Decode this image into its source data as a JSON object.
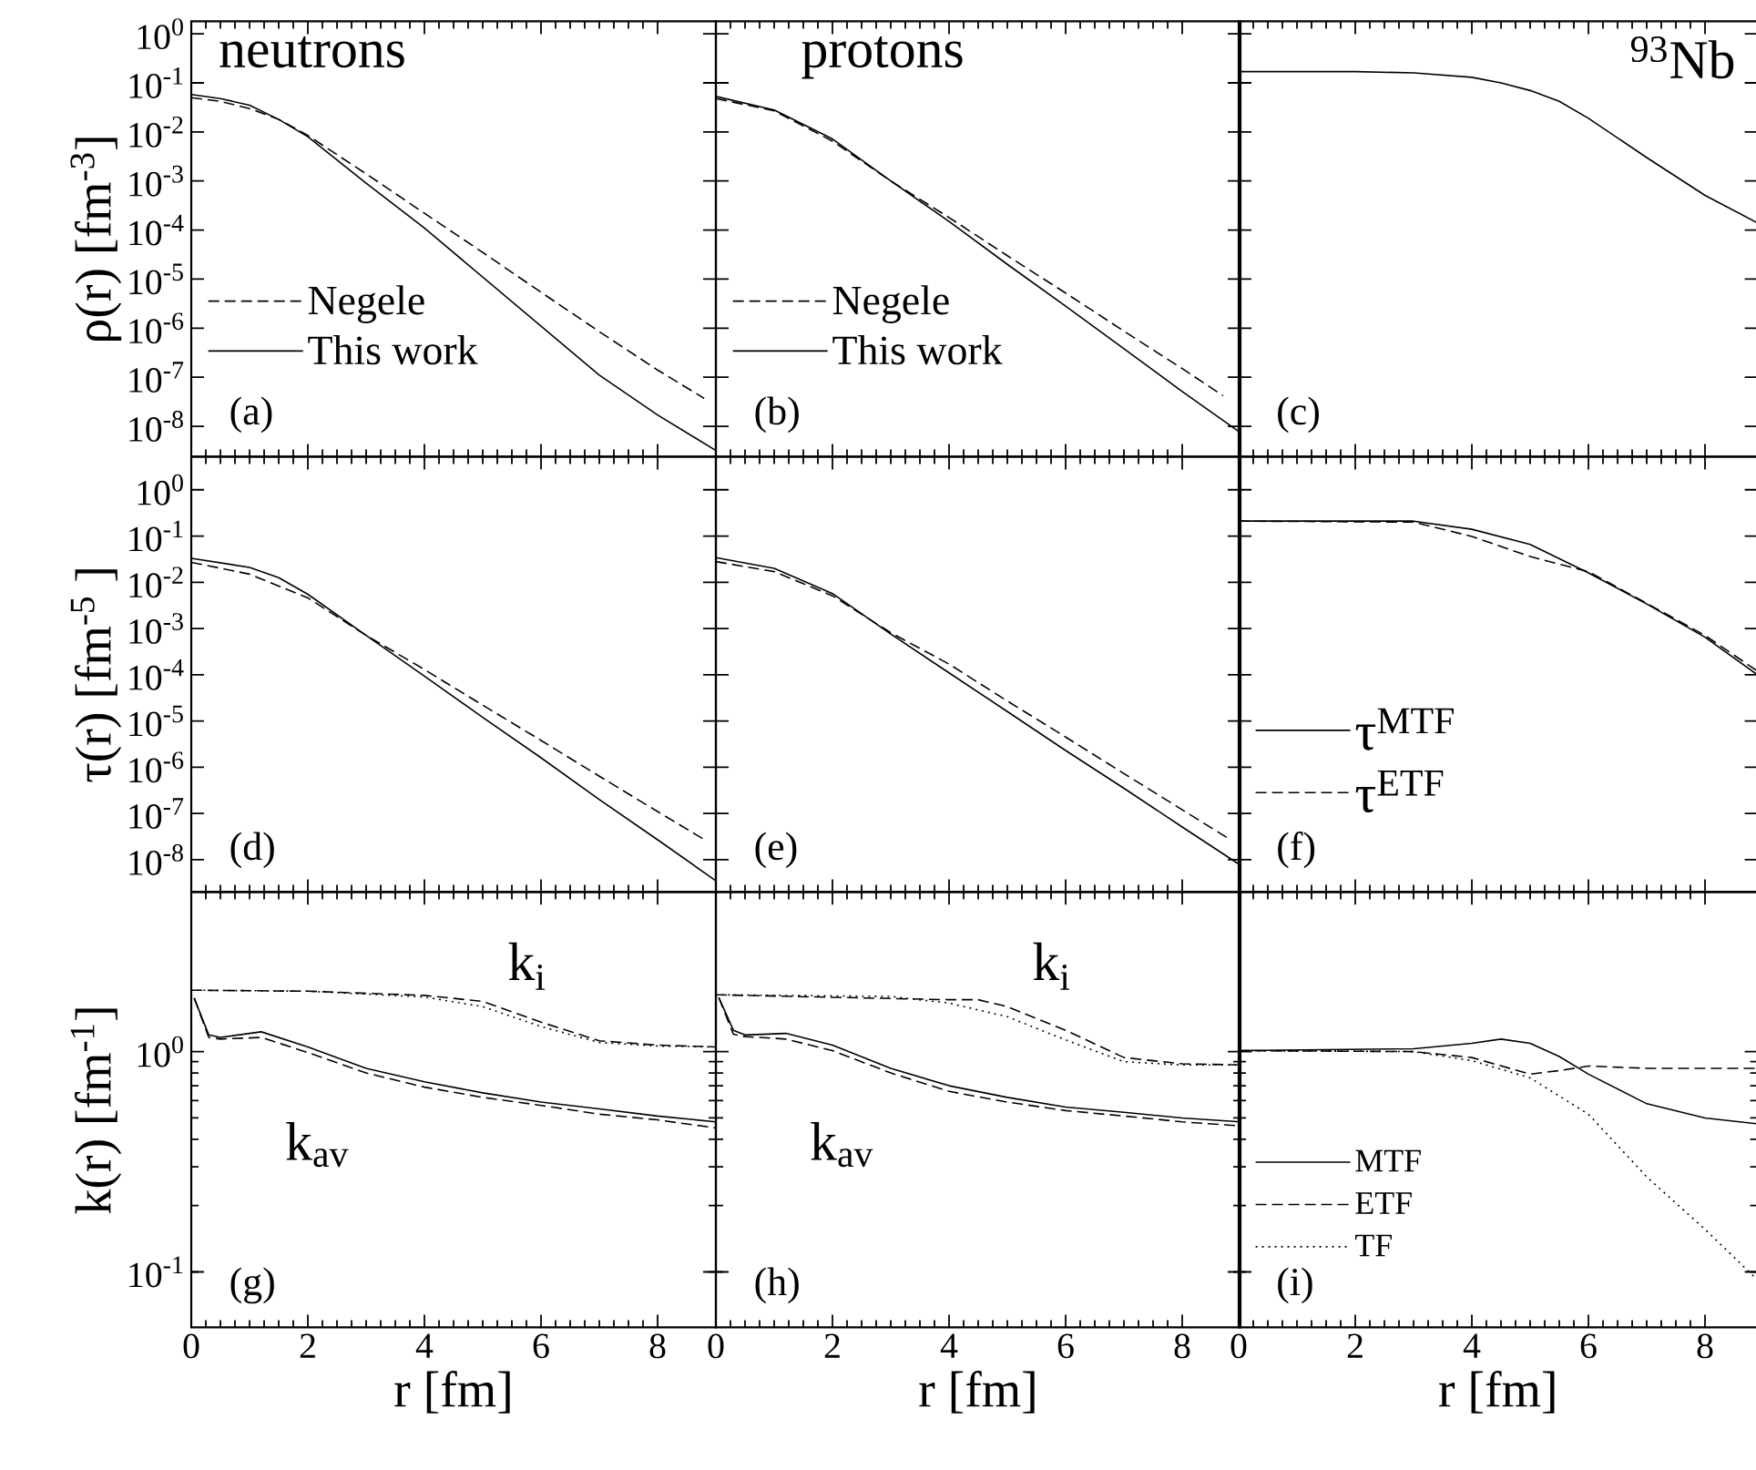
{
  "chart_data": [
    {
      "type": "line",
      "ylabel": "ρ(r)  [fm$^{-3}$]",
      "xlim": [
        0,
        9
      ],
      "ylim": [
        2.4e-09,
        1.8
      ],
      "log": "y",
      "tick_labels": "y",
      "legend": "left",
      "xticks": [
        0,
        2,
        4,
        6,
        8
      ],
      "yticks": [
        {
          "value": 1,
          "label": "10$^{0}$"
        },
        {
          "value": 0.1,
          "label": "10$^{-1}$"
        },
        {
          "value": 0.01,
          "label": "10$^{-2}$"
        },
        {
          "value": 0.001,
          "label": "10$^{-3}$"
        },
        {
          "value": 0.0001,
          "label": "10$^{-4}$"
        },
        {
          "value": 1e-05,
          "label": "10$^{-5}$"
        },
        {
          "value": 1e-06,
          "label": "10$^{-6}$"
        },
        {
          "value": 1e-07,
          "label": "10$^{-7}$"
        },
        {
          "value": 1e-08,
          "label": "10$^{-8}$"
        }
      ],
      "series": [
        {
          "name": "Negele",
          "color": "#000000",
          "line_style": "dashed",
          "x": [
            0,
            0.5,
            1,
            1.5,
            2,
            3,
            4,
            5,
            6,
            7,
            8,
            8.8
          ],
          "values": [
            0.05,
            0.042,
            0.03,
            0.018,
            0.0085,
            0.0014,
            0.00022,
            3.5e-05,
            5.4e-06,
            8.5e-07,
            1.4e-07,
            3.7e-08
          ]
        },
        {
          "name": "This work",
          "color": "#000000",
          "line_style": "solid",
          "x": [
            0,
            0.5,
            1,
            1.5,
            2,
            3,
            4,
            5,
            6,
            7,
            8,
            9
          ],
          "values": [
            0.058,
            0.048,
            0.035,
            0.018,
            0.008,
            0.0009,
            0.00011,
            1.1e-05,
            1.1e-06,
            1.1e-07,
            1.7e-08,
            3.2e-09
          ]
        }
      ],
      "annotations": [
        "neutrons",
        "(a)"
      ]
    },
    {
      "type": "line",
      "xlim": [
        0,
        9
      ],
      "ylim": [
        2.4e-09,
        1.8
      ],
      "log": "y",
      "tick_labels": false,
      "legend": "left",
      "xticks": [
        0,
        2,
        4,
        6,
        8
      ],
      "yticks": [
        1,
        0.1,
        0.01,
        0.001,
        0.0001,
        1e-05,
        1e-06,
        1e-07,
        1e-08
      ],
      "series": [
        {
          "name": "Negele",
          "color": "#000000",
          "line_style": "dashed",
          "x": [
            0,
            1,
            2,
            3,
            4,
            5,
            6,
            7,
            8,
            8.7
          ],
          "values": [
            0.048,
            0.027,
            0.0065,
            0.001,
            0.00018,
            3e-05,
            5.2e-06,
            8.7e-07,
            1.5e-07,
            4.2e-08
          ]
        },
        {
          "name": "This work",
          "color": "#000000",
          "line_style": "solid",
          "x": [
            0,
            1,
            2,
            3,
            4,
            5,
            6,
            7,
            8,
            9
          ],
          "values": [
            0.053,
            0.028,
            0.0072,
            0.001,
            0.00015,
            2e-05,
            2.8e-06,
            3.8e-07,
            5.1e-08,
            7.4e-09
          ]
        }
      ],
      "annotations": [
        "protons",
        "(b)"
      ]
    },
    {
      "type": "line",
      "xlim": [
        0,
        8.9
      ],
      "ylim": [
        2.4e-09,
        1.8
      ],
      "log": "y",
      "tick_labels": false,
      "xticks": [
        0,
        2,
        4,
        6,
        8
      ],
      "yticks": [
        1,
        0.1,
        0.01,
        0.001,
        0.0001,
        1e-05,
        1e-06,
        1e-07,
        1e-08
      ],
      "series": [
        {
          "color": "#000000",
          "line_style": "solid",
          "x": [
            0,
            1,
            2,
            3,
            4,
            4.5,
            5,
            5.5,
            6,
            7,
            8,
            8.9
          ],
          "values": [
            0.17,
            0.17,
            0.17,
            0.16,
            0.13,
            0.1,
            0.07,
            0.042,
            0.019,
            0.003,
            0.00051,
            0.00014
          ]
        }
      ],
      "annotations": [
        "$^{93}$Nb",
        "(c)"
      ]
    },
    {
      "type": "line",
      "ylabel": "τ(r)  [fm$^{-5}$ ]",
      "xlim": [
        0,
        9
      ],
      "ylim": [
        2e-09,
        5.2
      ],
      "log": "y",
      "tick_labels": "y",
      "xticks": [
        0,
        2,
        4,
        6,
        8
      ],
      "yticks": [
        {
          "value": 1,
          "label": "10$^{0}$"
        },
        {
          "value": 0.1,
          "label": "10$^{-1}$"
        },
        {
          "value": 0.01,
          "label": "10$^{-2}$"
        },
        {
          "value": 0.001,
          "label": "10$^{-3}$"
        },
        {
          "value": 0.0001,
          "label": "10$^{-4}$"
        },
        {
          "value": 1e-05,
          "label": "10$^{-5}$"
        },
        {
          "value": 1e-06,
          "label": "10$^{-6}$"
        },
        {
          "value": 1e-07,
          "label": "10$^{-7}$"
        },
        {
          "value": 1e-08,
          "label": "10$^{-8}$"
        }
      ],
      "series": [
        {
          "color": "#000000",
          "line_style": "solid",
          "x": [
            0,
            1,
            1.5,
            2,
            3,
            4,
            5,
            6,
            7,
            8,
            9
          ],
          "values": [
            0.033,
            0.021,
            0.0126,
            0.0055,
            0.00071,
            9.3e-05,
            1.2e-05,
            1.6e-06,
            2e-07,
            2.7e-08,
            3.5e-09
          ]
        },
        {
          "color": "#000000",
          "line_style": "dashed",
          "x": [
            0,
            1,
            2,
            3,
            4,
            5,
            6,
            7,
            8,
            8.85
          ],
          "values": [
            0.027,
            0.015,
            0.0046,
            0.00071,
            0.00013,
            2.2e-05,
            3.8e-06,
            6.4e-07,
            1.1e-07,
            2.5e-08
          ]
        }
      ],
      "annotations": [
        "(d)"
      ]
    },
    {
      "type": "line",
      "xlim": [
        0,
        9
      ],
      "ylim": [
        2e-09,
        5.2
      ],
      "log": "y",
      "tick_labels": false,
      "xticks": [
        0,
        2,
        4,
        6,
        8
      ],
      "yticks": [
        1,
        0.1,
        0.01,
        0.001,
        0.0001,
        1e-05,
        1e-06,
        1e-07,
        1e-08
      ],
      "series": [
        {
          "color": "#000000",
          "line_style": "solid",
          "x": [
            0,
            1,
            2,
            3,
            4,
            5,
            6,
            7,
            8,
            9
          ],
          "values": [
            0.034,
            0.02,
            0.0057,
            0.00076,
            0.00011,
            1.6e-05,
            2.3e-06,
            3.5e-07,
            5.1e-08,
            7.6e-09
          ]
        },
        {
          "color": "#000000",
          "line_style": "dashed",
          "x": [
            0,
            1,
            2,
            3,
            4,
            5,
            6,
            7,
            8,
            8.83
          ],
          "values": [
            0.028,
            0.017,
            0.0051,
            0.00081,
            0.00017,
            2.7e-05,
            4.5e-06,
            7.3e-07,
            1.2e-07,
            2.7e-08
          ]
        }
      ],
      "annotations": [
        "(e)"
      ]
    },
    {
      "type": "line",
      "xlim": [
        0,
        8.9
      ],
      "ylim": [
        2e-09,
        5.2
      ],
      "log": "y",
      "tick_labels": false,
      "legend": "left",
      "xticks": [
        0,
        2,
        4,
        6,
        8
      ],
      "yticks": [
        1,
        0.1,
        0.01,
        0.001,
        0.0001,
        1e-05,
        1e-06,
        1e-07,
        1e-08
      ],
      "series": [
        {
          "name": "τ$^{MTF}$",
          "color": "#000000",
          "line_style": "solid",
          "x": [
            0,
            3,
            4,
            5,
            6,
            7,
            8,
            8.9
          ],
          "values": [
            0.21,
            0.21,
            0.14,
            0.066,
            0.016,
            0.0034,
            0.00065,
            0.0001
          ]
        },
        {
          "name": "τ$^{ETF}$",
          "color": "#000000",
          "line_style": "dashed",
          "x": [
            0,
            3,
            4,
            5,
            6,
            7,
            8,
            8.9
          ],
          "values": [
            0.21,
            0.2,
            0.098,
            0.036,
            0.017,
            0.0035,
            0.00071,
            0.00012
          ]
        }
      ],
      "annotations": [
        "(f)"
      ]
    },
    {
      "type": "line",
      "ylabel": "k(r)  [fm$^{-1}$]",
      "xlabel": "r [fm]",
      "xlim": [
        0,
        9
      ],
      "ylim": [
        0.056,
        5.3
      ],
      "log": "y",
      "xticks": [
        0,
        2,
        4,
        6,
        8
      ],
      "yticks": [
        {
          "value": 0.1,
          "label": "10$^{-1}$"
        },
        {
          "value": 1,
          "label": "10$^{0}$"
        }
      ],
      "series": [
        {
          "color": "#000000",
          "line_style": "dashed",
          "x": [
            0,
            2,
            4,
            5,
            6,
            7,
            8,
            9
          ],
          "values": [
            1.9,
            1.88,
            1.8,
            1.69,
            1.36,
            1.12,
            1.07,
            1.05
          ]
        },
        {
          "color": "#000000",
          "line_style": "dotted",
          "x": [
            0.1,
            2,
            4,
            5,
            6,
            7,
            8,
            8.95
          ],
          "values": [
            1.9,
            1.88,
            1.77,
            1.6,
            1.3,
            1.1,
            1.06,
            1.05
          ]
        },
        {
          "color": "#000000",
          "line_style": "solid",
          "x": [
            0.05,
            0.3,
            0.5,
            1.2,
            2,
            3,
            4,
            5,
            6,
            7,
            8,
            9
          ],
          "values": [
            1.75,
            1.19,
            1.16,
            1.23,
            1.05,
            0.84,
            0.73,
            0.65,
            0.59,
            0.55,
            0.51,
            0.48
          ]
        },
        {
          "color": "#000000",
          "line_style": "dashed",
          "x": [
            0.05,
            0.3,
            0.5,
            1.2,
            2,
            3,
            4,
            5,
            6,
            7,
            8,
            9
          ],
          "values": [
            1.75,
            1.16,
            1.14,
            1.16,
            0.99,
            0.8,
            0.69,
            0.62,
            0.57,
            0.52,
            0.49,
            0.45
          ]
        }
      ],
      "annotations": [
        "k$_{i}$",
        "k$_{av}$",
        "(g)"
      ]
    },
    {
      "type": "line",
      "xlabel": "r [fm]",
      "xlim": [
        0,
        9
      ],
      "ylim": [
        0.056,
        5.3
      ],
      "log": "y",
      "tick_labels": "x",
      "xticks": [
        0,
        2,
        4,
        6,
        8
      ],
      "yticks": [
        0.1,
        1
      ],
      "series": [
        {
          "color": "#000000",
          "line_style": "dashed",
          "x": [
            0,
            4,
            4.5,
            5,
            6,
            7,
            8,
            9
          ],
          "values": [
            1.81,
            1.72,
            1.72,
            1.6,
            1.25,
            0.94,
            0.88,
            0.87
          ]
        },
        {
          "color": "#000000",
          "line_style": "dotted",
          "x": [
            0.1,
            3,
            4,
            5,
            6,
            7,
            8,
            8.95
          ],
          "values": [
            1.81,
            1.78,
            1.66,
            1.44,
            1.13,
            0.9,
            0.87,
            0.87
          ]
        },
        {
          "color": "#000000",
          "line_style": "solid",
          "x": [
            0.05,
            0.3,
            0.5,
            1.2,
            2,
            3,
            4,
            5,
            6,
            7,
            8,
            9
          ],
          "values": [
            1.76,
            1.25,
            1.19,
            1.21,
            1.07,
            0.84,
            0.7,
            0.62,
            0.56,
            0.53,
            0.5,
            0.48
          ]
        },
        {
          "color": "#000000",
          "line_style": "dashed",
          "x": [
            0.05,
            0.3,
            0.5,
            1.2,
            2,
            3,
            4,
            5,
            6,
            7,
            8,
            9
          ],
          "values": [
            1.76,
            1.2,
            1.17,
            1.14,
            1.01,
            0.8,
            0.66,
            0.59,
            0.54,
            0.51,
            0.48,
            0.46
          ]
        }
      ],
      "annotations": [
        "k$_{i}$",
        "k$_{av}$",
        "(h)"
      ]
    },
    {
      "type": "line",
      "xlabel": "r [fm]",
      "xlim": [
        0,
        8.9
      ],
      "ylim": [
        0.056,
        5.3
      ],
      "log": "y",
      "tick_labels": "x",
      "legend": "bottom left",
      "xticks": [
        0,
        2,
        4,
        6,
        8
      ],
      "yticks": [
        0.1,
        1
      ],
      "series": [
        {
          "name": "MTF",
          "color": "#000000",
          "line_style": "solid",
          "x": [
            0,
            3,
            4,
            4.5,
            5,
            5.5,
            6,
            7,
            8,
            8.9
          ],
          "values": [
            1.01,
            1.03,
            1.09,
            1.14,
            1.09,
            0.95,
            0.79,
            0.58,
            0.5,
            0.47
          ]
        },
        {
          "name": "ETF",
          "color": "#000000",
          "line_style": "dashed",
          "x": [
            0,
            3,
            4,
            5,
            5.5,
            6,
            7,
            8.9
          ],
          "values": [
            1.01,
            1.0,
            0.94,
            0.79,
            0.82,
            0.86,
            0.84,
            0.84
          ]
        },
        {
          "name": "TF",
          "color": "#000000",
          "line_style": "dotted",
          "x": [
            0,
            3,
            4,
            5,
            6,
            7,
            8,
            8.9
          ],
          "values": [
            1.01,
            1.0,
            0.91,
            0.76,
            0.52,
            0.27,
            0.156,
            0.092
          ]
        }
      ],
      "annotations": [
        "(i)"
      ]
    }
  ]
}
